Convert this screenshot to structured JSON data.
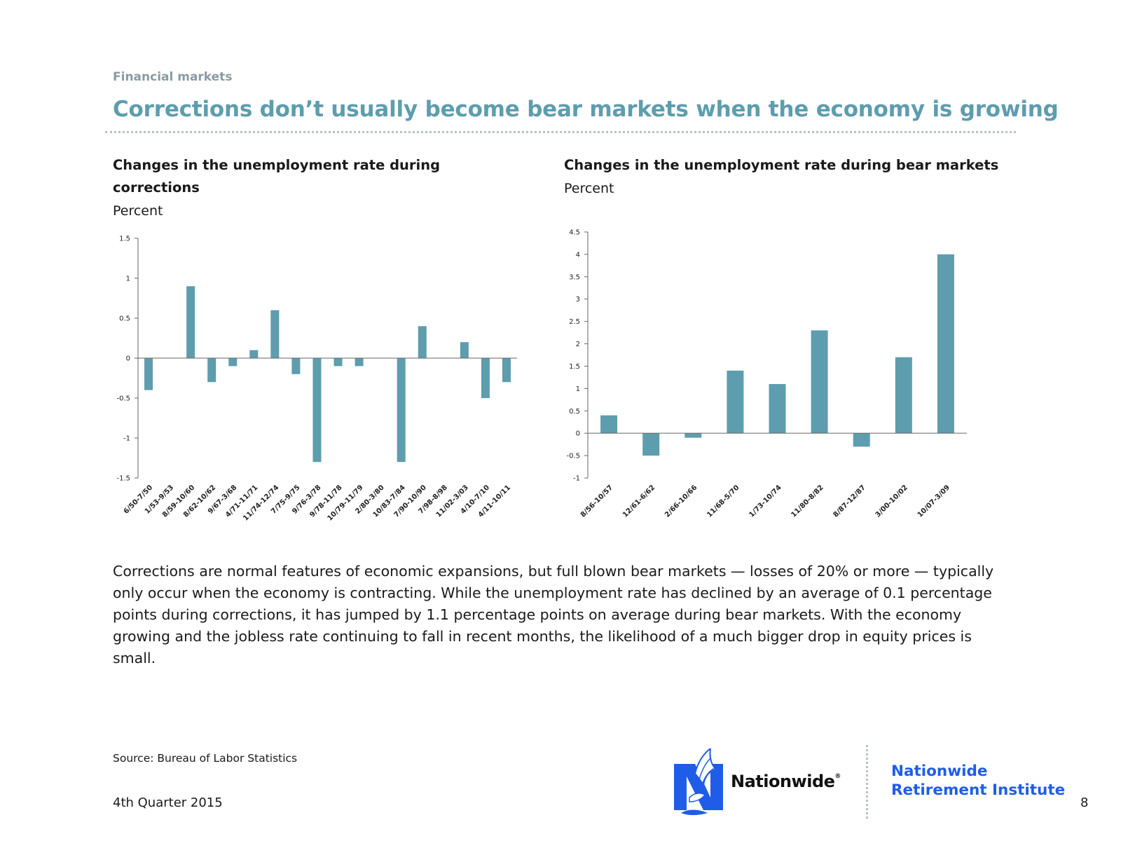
{
  "header": {
    "section": "Financial markets",
    "title": "Corrections don’t usually become bear markets when the economy is growing"
  },
  "chart_data": [
    {
      "type": "bar",
      "title": "Changes in the unemployment rate during corrections",
      "unit": "Percent",
      "categories": [
        "6/50-7/50",
        "1/53-9/53",
        "8/59-10/60",
        "8/62-10/62",
        "9/67-3/68",
        "4/71-11/71",
        "11/74-12/74",
        "7/75-9/75",
        "9/76-3/78",
        "9/78-11/78",
        "10/79-11/79",
        "2/80-3/80",
        "10/83-7/84",
        "7/90-10/90",
        "7/98-8/98",
        "11/02-3/03",
        "4/10-7/10",
        "4/11-10/11"
      ],
      "values": [
        -0.4,
        0,
        0.9,
        -0.3,
        -0.1,
        0.1,
        0.6,
        -0.2,
        -1.3,
        -0.1,
        -0.1,
        0,
        -1.3,
        0.4,
        0,
        0.2,
        -0.5,
        -0.3
      ],
      "ylim": [
        -1.5,
        1.5
      ],
      "yticks": [
        -1.5,
        -1,
        -0.5,
        0,
        0.5,
        1,
        1.5
      ],
      "ytick_labels": [
        "-1.5",
        "-1",
        "-0.5",
        "0",
        "0.5",
        "1",
        "1.5"
      ],
      "color": "#5d9dae",
      "grid": false
    },
    {
      "type": "bar",
      "title": "Changes in the unemployment rate during bear markets",
      "unit": "Percent",
      "categories": [
        "8/56-10/57",
        "12/61-6/62",
        "2/66-10/66",
        "11/68-5/70",
        "1/73-10/74",
        "11/80-8/82",
        "8/87-12/87",
        "3/00-10/02",
        "10/07-3/09"
      ],
      "values": [
        0.4,
        -0.5,
        -0.1,
        1.4,
        1.1,
        2.3,
        -0.3,
        1.7,
        4.0
      ],
      "ylim": [
        -1,
        4.5
      ],
      "yticks": [
        -1,
        -0.5,
        0,
        0.5,
        1,
        1.5,
        2,
        2.5,
        3,
        3.5,
        4,
        4.5
      ],
      "ytick_labels": [
        "-1",
        "-0.5",
        "0",
        "0.5",
        "1",
        "1.5",
        "2",
        "2.5",
        "3",
        "3.5",
        "4",
        "4.5"
      ],
      "color": "#5d9dae",
      "grid": false
    }
  ],
  "body_text": "Corrections are normal features of economic expansions, but full blown bear markets — losses of 20% or more — typically only occur when the economy is contracting. While the unemployment rate has declined by an average of 0.1 percentage points during corrections, it has jumped by 1.1 percentage points on average during bear markets. With the economy growing and the jobless rate continuing to fall in recent months, the likelihood of a much bigger drop in equity prices is small.",
  "footer": {
    "source": "Source: Bureau of Labor Statistics",
    "date": "4th Quarter 2015",
    "page_number": "8",
    "brand": "Nationwide",
    "brand_mark": "®",
    "institute_line1": "Nationwide",
    "institute_line2": "Retirement Institute",
    "logo_icon": "eagle-n-logo-icon",
    "brand_color": "#1f5de8"
  }
}
